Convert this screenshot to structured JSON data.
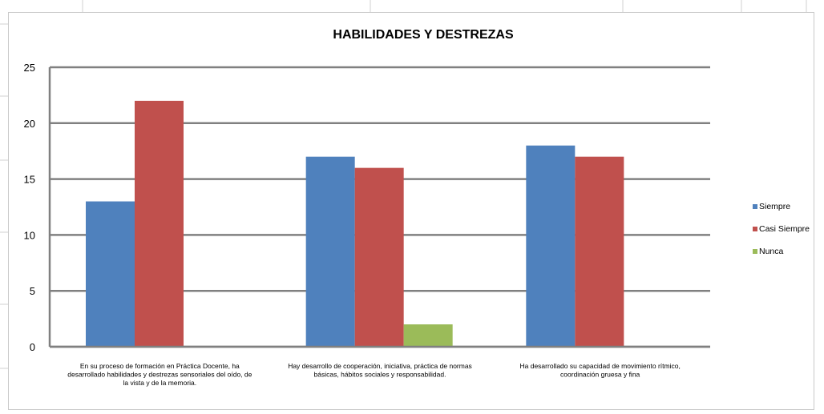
{
  "chart_data": {
    "type": "bar",
    "title": "HABILIDADES Y DESTREZAS",
    "categories": [
      [
        "En su proceso de formación en Práctica Docente, ha",
        "desarrollado habilidades y destrezas sensoriales del oído, de",
        "la vista y de la memoria."
      ],
      [
        "Hay desarrollo de cooperación, iniciativa, práctica de normas",
        "básicas, hábitos sociales y responsabilidad."
      ],
      [
        "Ha desarrollado su capacidad de movimiento rítmico,",
        "coordinación gruesa y fina"
      ]
    ],
    "series": [
      {
        "name": "Siempre",
        "color": "#4F81BD",
        "values": [
          13,
          17,
          18
        ]
      },
      {
        "name": "Casi Siempre",
        "color": "#C0504D",
        "values": [
          22,
          16,
          17
        ]
      },
      {
        "name": "Nunca",
        "color": "#9BBB59",
        "values": [
          0,
          2,
          0
        ]
      }
    ],
    "yticks": [
      "0",
      "5",
      "10",
      "15",
      "20",
      "25"
    ],
    "ylim": [
      0,
      25
    ],
    "grid": true,
    "legend": "right"
  }
}
